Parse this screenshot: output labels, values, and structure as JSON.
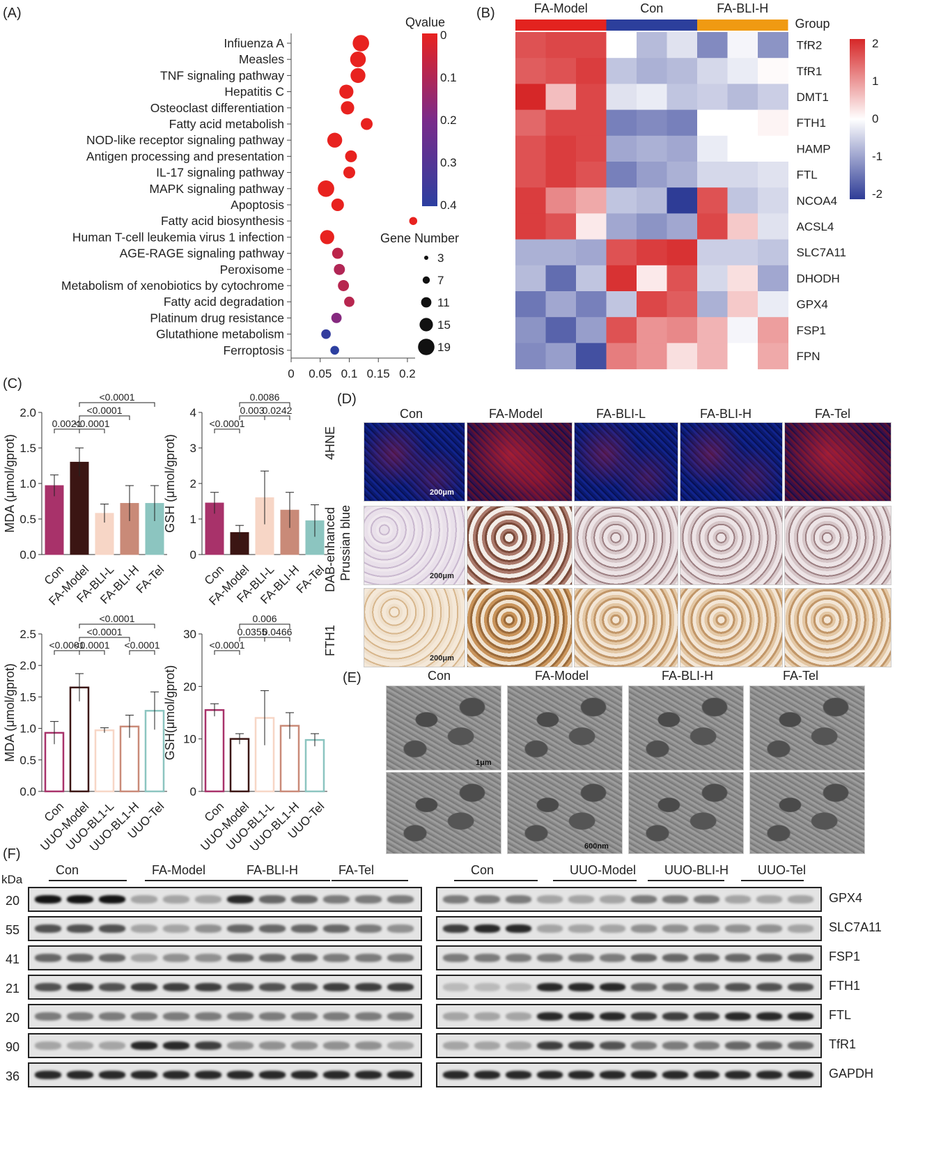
{
  "panels": {
    "A": "(A)",
    "B": "(B)",
    "C": "(C)",
    "D": "(D)",
    "E": "(E)",
    "F": "(F)"
  },
  "panelA": {
    "chart_data": {
      "type": "scatter",
      "terms": [
        "Infiuenza A",
        "Measles",
        "TNF signaling pathway",
        "Hepatitis C",
        "Osteoclast differentiation",
        "Fatty acid metabolish",
        "NOD-like receptor signaling pathway",
        "Antigen processing and presentation",
        "IL-17 signaling pathway",
        "MAPK signaling pathway",
        "Apoptosis",
        "Fatty acid biosynthesis",
        "Human T-cell leukemia virus 1 infection",
        "AGE-RAGE signaling pathway",
        "Peroxisome",
        "Metabolism of xenobiotics by cytochrome",
        "Fatty acid degradation",
        "Platinum drug resistance",
        "Glutathione metabolism",
        "Ferroptosis"
      ],
      "x": [
        0.12,
        0.115,
        0.115,
        0.095,
        0.097,
        0.13,
        0.075,
        0.103,
        0.1,
        0.06,
        0.08,
        0.21,
        0.062,
        0.08,
        0.083,
        0.09,
        0.1,
        0.078,
        0.06,
        0.075
      ],
      "gene_number": [
        19,
        18,
        17,
        16,
        15,
        13,
        17,
        13,
        13,
        19,
        14,
        8,
        16,
        12,
        12,
        12,
        11,
        11,
        10,
        9
      ],
      "qvalue": [
        0.0,
        0.0,
        0.0,
        0.0,
        0.0,
        0.0,
        0.0,
        0.0,
        0.0,
        0.0,
        0.0,
        0.0,
        0.0,
        0.08,
        0.1,
        0.09,
        0.09,
        0.18,
        0.38,
        0.4
      ],
      "xticks": [
        "0",
        "0.05",
        "0.1",
        "0.15",
        "0.2"
      ],
      "xlim": [
        0,
        0.23
      ],
      "legend_q_title": "Qvalue",
      "legend_q_ticks": [
        "0",
        "0.1",
        "0.2",
        "0.3",
        "0.4"
      ],
      "legend_size_title": "Gene Number",
      "legend_size_ticks": [
        "3",
        "7",
        "11",
        "15",
        "19"
      ],
      "colors": {
        "low_q": "#e8221f",
        "mid_q": "#7a2a8a",
        "high_q": "#2c3fa0"
      }
    }
  },
  "panelB": {
    "chart_data": {
      "type": "heatmap",
      "groups": [
        "FA-Model",
        "Con",
        "FA-BLI-H"
      ],
      "group_colors": [
        "#e3231f",
        "#2c3f9c",
        "#f09a12"
      ],
      "group_label": "Group",
      "genes": [
        "TfR2",
        "TfR1",
        "DMT1",
        "FTH1",
        "HAMP",
        "FTL",
        "NCOA4",
        "ACSL4",
        "SLC7A11",
        "DHODH",
        "GPX4",
        "FSP1",
        "FPN"
      ],
      "values": [
        [
          1.6,
          1.7,
          1.7,
          0.0,
          -0.7,
          -0.3,
          -1.2,
          -0.1,
          -1.1
        ],
        [
          1.5,
          1.6,
          1.8,
          -0.6,
          -0.8,
          -0.7,
          -0.4,
          -0.2,
          0.05
        ],
        [
          2.0,
          0.6,
          1.7,
          -0.3,
          -0.2,
          -0.6,
          -0.5,
          -0.7,
          -0.5
        ],
        [
          1.4,
          1.7,
          1.7,
          -1.3,
          -1.2,
          -1.3,
          0.0,
          0.0,
          0.1
        ],
        [
          1.6,
          1.8,
          1.7,
          -0.9,
          -0.8,
          -0.9,
          -0.2,
          0.0,
          0.0
        ],
        [
          1.6,
          1.8,
          1.6,
          -1.3,
          -1.0,
          -0.8,
          -0.4,
          -0.4,
          -0.3
        ],
        [
          1.8,
          1.1,
          0.8,
          -0.6,
          -0.7,
          -2.0,
          1.6,
          -0.6,
          -0.4
        ],
        [
          1.8,
          1.6,
          0.2,
          -0.9,
          -1.1,
          -0.9,
          1.7,
          0.5,
          -0.3
        ],
        [
          -0.8,
          -0.8,
          -0.9,
          1.6,
          1.8,
          1.9,
          -0.5,
          -0.5,
          -0.6
        ],
        [
          -0.7,
          -1.5,
          -0.6,
          1.9,
          0.2,
          1.6,
          -0.4,
          0.3,
          -0.9
        ],
        [
          -1.4,
          -0.9,
          -1.3,
          -0.6,
          1.7,
          1.5,
          -0.8,
          0.5,
          -0.2
        ],
        [
          -1.1,
          -1.6,
          -1.0,
          1.6,
          1.0,
          1.1,
          0.7,
          -0.1,
          0.9
        ],
        [
          -1.2,
          -1.0,
          -1.8,
          1.2,
          1.0,
          0.3,
          0.7,
          0.0,
          0.8
        ]
      ],
      "colorbar_ticks": [
        "2",
        "1",
        "0",
        "-1",
        "-2"
      ]
    }
  },
  "panelC": {
    "charts": [
      {
        "type": "bar",
        "ylabel": "MDA (μmol/gprot)",
        "categories": [
          "Con",
          "FA-Model",
          "FA-BLI-L",
          "FA-BLI-H",
          "FA-Tel"
        ],
        "values": [
          0.97,
          1.3,
          0.58,
          0.72,
          0.72
        ],
        "errors": [
          0.15,
          0.2,
          0.13,
          0.25,
          0.25
        ],
        "ylim": [
          0,
          2.0
        ],
        "yticks": [
          "0.0",
          "0.5",
          "1.0",
          "1.5",
          "2.0"
        ],
        "filled": true,
        "colors": [
          "#a8326a",
          "#3b1513",
          "#f7d6c6",
          "#c98a78",
          "#8cc5c0"
        ],
        "brackets": [
          {
            "label": "0.0021",
            "a": 0,
            "b": 1,
            "level": 0
          },
          {
            "label": "<0.0001",
            "a": 1,
            "b": 2,
            "level": 0
          },
          {
            "label": "<0.0001",
            "a": 1,
            "b": 3,
            "level": 1
          },
          {
            "label": "<0.0001",
            "a": 1,
            "b": 4,
            "level": 2
          }
        ]
      },
      {
        "type": "bar",
        "ylabel": "GSH (μmol/gprot)",
        "categories": [
          "Con",
          "FA-Model",
          "FA-BLI-L",
          "FA-BLI-H",
          "FA-Tel"
        ],
        "values": [
          1.45,
          0.62,
          1.6,
          1.25,
          0.95
        ],
        "errors": [
          0.3,
          0.2,
          0.75,
          0.5,
          0.45
        ],
        "ylim": [
          0,
          4
        ],
        "yticks": [
          "0",
          "1",
          "2",
          "3",
          "4"
        ],
        "filled": true,
        "colors": [
          "#a8326a",
          "#3b1513",
          "#f7d6c6",
          "#c98a78",
          "#8cc5c0"
        ],
        "brackets": [
          {
            "label": "<0.0001",
            "a": 0,
            "b": 1,
            "level": 0
          },
          {
            "label": "0.003",
            "a": 1,
            "b": 2,
            "level": 1
          },
          {
            "label": "0.0242",
            "a": 2,
            "b": 3,
            "level": 1
          },
          {
            "label": "0.0086",
            "a": 1,
            "b": 3,
            "level": 2
          }
        ]
      },
      {
        "type": "bar",
        "ylabel": "MDA (μmol/gprot)",
        "categories": [
          "Con",
          "UUO-Model",
          "UUO-BL1-L",
          "UUO-BL1-H",
          "UUO-Tel"
        ],
        "values": [
          0.93,
          1.65,
          0.97,
          1.03,
          1.28
        ],
        "errors": [
          0.18,
          0.22,
          0.04,
          0.18,
          0.3
        ],
        "ylim": [
          0,
          2.5
        ],
        "yticks": [
          "0.0",
          "0.5",
          "1.0",
          "1.5",
          "2.0",
          "2.5"
        ],
        "filled": false,
        "colors": [
          "#a8326a",
          "#3b1513",
          "#f7d6c6",
          "#c98a78",
          "#8cc5c0"
        ],
        "brackets": [
          {
            "label": "<0.0001",
            "a": 0,
            "b": 1,
            "level": 0
          },
          {
            "label": "<0.0001",
            "a": 1,
            "b": 2,
            "level": 0
          },
          {
            "label": "<0.0001",
            "a": 1,
            "b": 3,
            "level": 1
          },
          {
            "label": "<0.0001",
            "a": 3,
            "b": 4,
            "level": 0
          },
          {
            "label": "<0.0001",
            "a": 1,
            "b": 4,
            "level": 2
          }
        ]
      },
      {
        "type": "bar",
        "ylabel": "GSH(μmol/gprot)",
        "categories": [
          "Con",
          "UUO-Model",
          "UUO-BL1-L",
          "UUO-BL1-H",
          "UUO-Tel"
        ],
        "values": [
          15.5,
          10.0,
          14.0,
          12.5,
          9.8
        ],
        "errors": [
          1.2,
          1.0,
          5.2,
          2.5,
          1.2
        ],
        "ylim": [
          0,
          30
        ],
        "yticks": [
          "0",
          "10",
          "20",
          "30"
        ],
        "filled": false,
        "colors": [
          "#a8326a",
          "#3b1513",
          "#f7d6c6",
          "#c98a78",
          "#8cc5c0"
        ],
        "brackets": [
          {
            "label": "<0.0001",
            "a": 0,
            "b": 1,
            "level": 0
          },
          {
            "label": "0.0355",
            "a": 1,
            "b": 2,
            "level": 1
          },
          {
            "label": "0.0466",
            "a": 2,
            "b": 3,
            "level": 1
          },
          {
            "label": "0.006",
            "a": 1,
            "b": 3,
            "level": 2
          }
        ]
      }
    ]
  },
  "panelD": {
    "columns": [
      "Con",
      "FA-Model",
      "FA-BLI-L",
      "FA-BLI-H",
      "FA-Tel"
    ],
    "rows": [
      "4HNE",
      "DAB-enhanced\nPrussian blue",
      "FTH1"
    ],
    "row_label_1": "4HNE",
    "row_label_2a": "DAB-enhanced",
    "row_label_2b": "Prussian blue",
    "row_label_3": "FTH1",
    "scalebar": "200μm"
  },
  "panelE": {
    "columns": [
      "Con",
      "FA-Model",
      "FA-BLI-H",
      "FA-Tel"
    ],
    "scalebar_top": "1μm",
    "scalebar_bottom": "600nm"
  },
  "panelF": {
    "kda_label": "kDa",
    "kda": [
      "20",
      "55",
      "41",
      "21",
      "20",
      "90",
      "36"
    ],
    "left_groups": [
      "Con",
      "FA-Model",
      "FA-BLI-H",
      "FA-Tel"
    ],
    "right_groups": [
      "Con",
      "UUO-Model",
      "UUO-BLI-H",
      "UUO-Tel"
    ],
    "proteins": [
      "GPX4",
      "SLC7A11",
      "FSP1",
      "FTH1",
      "FTL",
      "TfR1",
      "GAPDH"
    ]
  }
}
